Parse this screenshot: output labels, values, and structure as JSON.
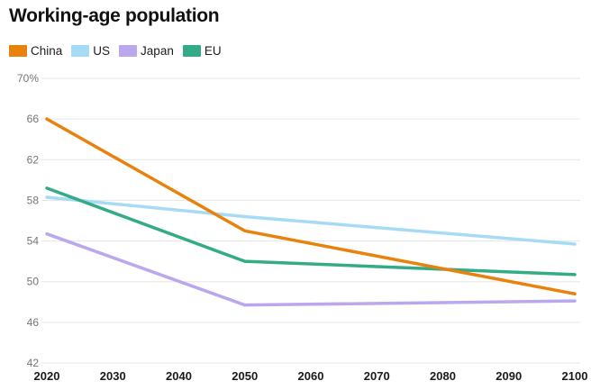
{
  "page": {
    "title": "Working-age population"
  },
  "chart_data": {
    "type": "line",
    "title": "Working-age population",
    "x": [
      2020,
      2050,
      2100
    ],
    "series": [
      {
        "name": "China",
        "color": "#E8820D",
        "values": [
          66.0,
          55.0,
          48.8
        ]
      },
      {
        "name": "US",
        "color": "#A6DBF5",
        "values": [
          58.3,
          56.4,
          53.7
        ]
      },
      {
        "name": "Japan",
        "color": "#BBA7EE",
        "values": [
          54.7,
          47.7,
          48.1
        ]
      },
      {
        "name": "EU",
        "color": "#34AB87",
        "values": [
          59.2,
          52.0,
          50.7
        ]
      }
    ],
    "legend_order": [
      "China",
      "US",
      "Japan",
      "EU"
    ],
    "draw_order": [
      "US",
      "Japan",
      "EU",
      "China"
    ],
    "x_ticks": [
      2020,
      2030,
      2040,
      2050,
      2060,
      2070,
      2080,
      2090,
      2100
    ],
    "y_ticks": [
      42,
      46,
      50,
      54,
      58,
      62,
      66,
      70
    ],
    "y_top_tick_label": "70%",
    "xlim": [
      2020,
      2100
    ],
    "ylim": [
      42,
      70
    ],
    "grid": "horizontal",
    "grid_color": "#e6e6e6",
    "y_tick_color": "#757575",
    "x_tick_color": "#1b1b1b",
    "legend_position": "top-left"
  }
}
